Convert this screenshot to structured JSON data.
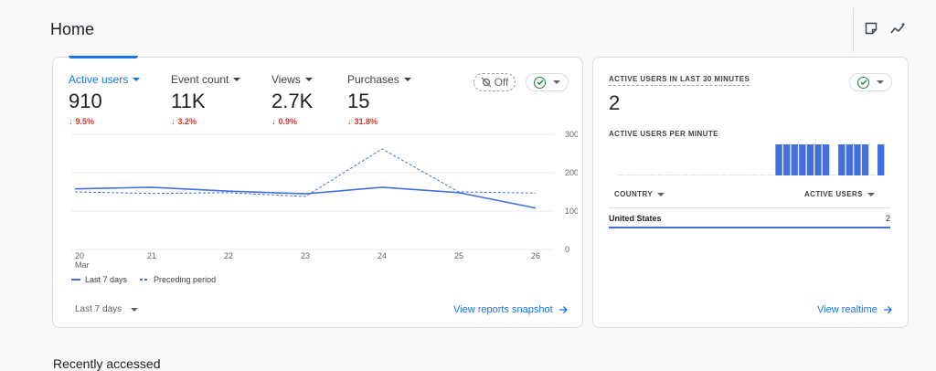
{
  "page": {
    "title": "Home",
    "recent_title": "Recently accessed"
  },
  "header_icons": [
    "note-icon",
    "insights-icon"
  ],
  "metrics": [
    {
      "label": "Active users",
      "value": "910",
      "delta": "9.5%",
      "active": true
    },
    {
      "label": "Event count",
      "value": "11K",
      "delta": "3.2%",
      "active": false
    },
    {
      "label": "Views",
      "value": "2.7K",
      "delta": "0.9%",
      "active": false
    },
    {
      "label": "Purchases",
      "value": "15",
      "delta": "31.8%",
      "active": false
    }
  ],
  "controls": {
    "off_label": "Off"
  },
  "chart_data": {
    "type": "line",
    "x": [
      "20",
      "21",
      "22",
      "23",
      "24",
      "25",
      "26"
    ],
    "x_sublabel": "Mar",
    "y_ticks": [
      "0",
      "100",
      "200",
      "300"
    ],
    "ylim": [
      0,
      300
    ],
    "grid": true,
    "series": [
      {
        "name": "Last 7 days",
        "values": [
          158,
          162,
          152,
          145,
          162,
          148,
          108
        ],
        "style": "solid",
        "color": "#4470dd"
      },
      {
        "name": "Preceding period",
        "values": [
          150,
          146,
          148,
          138,
          262,
          150,
          147
        ],
        "style": "dashed",
        "color": "#4470dd"
      }
    ]
  },
  "legend_position": "bottom-left",
  "footer": {
    "range_label": "Last 7 days",
    "link": "View reports snapshot"
  },
  "realtime": {
    "title": "ACTIVE USERS IN LAST 30 MINUTES",
    "value": "2",
    "subtitle": "ACTIVE USERS PER MINUTE",
    "per_minute": [
      0,
      0,
      0,
      0,
      0,
      0,
      0,
      0,
      0,
      0,
      0,
      0,
      0,
      0,
      0,
      0,
      0,
      0,
      0,
      0,
      1,
      1,
      1,
      1,
      1,
      1,
      1,
      0,
      1,
      1,
      1,
      1,
      0,
      1
    ],
    "col_country": "COUNTRY",
    "col_users": "ACTIVE USERS",
    "rows": [
      {
        "country": "United States",
        "users": "2"
      }
    ],
    "link": "View realtime"
  },
  "colors": {
    "accent": "#1a73e8",
    "chart_line": "#4470dd",
    "negative": "#d93025",
    "success": "#188038"
  }
}
